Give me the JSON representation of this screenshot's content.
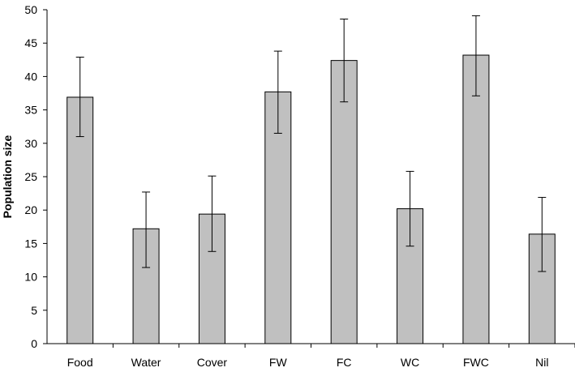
{
  "chart_data": {
    "type": "bar",
    "title": "",
    "xlabel": "",
    "ylabel": "Population size",
    "ylim": [
      0,
      50
    ],
    "yticks": [
      0,
      5,
      10,
      15,
      20,
      25,
      30,
      35,
      40,
      45,
      50
    ],
    "categories": [
      "Food",
      "Water",
      "Cover",
      "FW",
      "FC",
      "WC",
      "FWC",
      "Nil"
    ],
    "values": [
      36.9,
      17.2,
      19.4,
      37.7,
      42.4,
      20.2,
      43.2,
      16.4
    ],
    "error_low": [
      31.0,
      11.4,
      13.8,
      31.5,
      36.2,
      14.6,
      37.1,
      10.8
    ],
    "error_high": [
      42.9,
      22.7,
      25.1,
      43.8,
      48.6,
      25.8,
      49.1,
      21.9
    ],
    "grid": false,
    "legend": "none",
    "colors": {
      "bar_fill": "#c0c0c0",
      "bar_stroke": "#000000",
      "axis": "#000000"
    }
  }
}
